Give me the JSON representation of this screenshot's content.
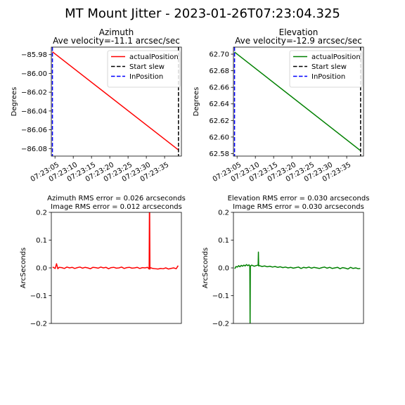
{
  "figure": {
    "title": "MT Mount Jitter - 2023-01-26T07:23:04.325"
  },
  "colors": {
    "azimuth": "#ff0000",
    "elevation": "#008000",
    "start_slew": "#000000",
    "in_position": "#0000ff"
  },
  "chart_data": [
    {
      "id": "azimuth-position",
      "type": "line",
      "title": "Azimuth",
      "subtitle": "Ave velocity=-11.1 arcsec/sec",
      "ylabel": "Degrees",
      "xlabel": "",
      "xlim": [
        "07:23:04.0",
        "07:23:39.6"
      ],
      "ylim": [
        -86.088,
        -85.972
      ],
      "xticks": [
        "07:23:05",
        "07:23:10",
        "07:23:15",
        "07:23:20",
        "07:23:25",
        "07:23:30",
        "07:23:35"
      ],
      "yticks": [
        -85.98,
        -86.0,
        -86.02,
        -86.04,
        -86.06,
        -86.08
      ],
      "ytick_labels": [
        "−85.98",
        "−86.00",
        "−86.02",
        "−86.04",
        "−86.06",
        "−86.08"
      ],
      "grid": false,
      "legend": "top-right",
      "series": [
        {
          "name": "actualPosition",
          "color": "#ff0000",
          "style": "solid",
          "x": [
            "07:23:04.3",
            "07:23:38.8"
          ],
          "y": [
            -85.977,
            -86.0815
          ]
        }
      ],
      "vlines": [
        {
          "name": "Start slew",
          "color": "#000000",
          "style": "dashed",
          "x": "07:23:38.8"
        },
        {
          "name": "InPosition",
          "color": "#0000ff",
          "style": "dashed",
          "x": "07:23:04.3"
        }
      ]
    },
    {
      "id": "elevation-position",
      "type": "line",
      "title": "Elevation",
      "subtitle": "Ave velocity=-12.9 arcsec/sec",
      "ylabel": "Degrees",
      "xlabel": "",
      "xlim": [
        "07:23:04.0",
        "07:23:39.6"
      ],
      "ylim": [
        62.577,
        62.7085
      ],
      "xticks": [
        "07:23:05",
        "07:23:10",
        "07:23:15",
        "07:23:20",
        "07:23:25",
        "07:23:30",
        "07:23:35"
      ],
      "yticks": [
        62.7,
        62.68,
        62.66,
        62.64,
        62.62,
        62.6,
        62.58
      ],
      "ytick_labels": [
        "62.70",
        "62.68",
        "62.66",
        "62.64",
        "62.62",
        "62.60",
        "62.58"
      ],
      "grid": false,
      "legend": "top-right",
      "series": [
        {
          "name": "actualPosition",
          "color": "#008000",
          "style": "solid",
          "x": [
            "07:23:04.3",
            "07:23:38.8"
          ],
          "y": [
            62.7025,
            62.5835
          ]
        }
      ],
      "vlines": [
        {
          "name": "Start slew",
          "color": "#000000",
          "style": "dashed",
          "x": "07:23:38.8"
        },
        {
          "name": "InPosition",
          "color": "#0000ff",
          "style": "dashed",
          "x": "07:23:04.3"
        }
      ]
    },
    {
      "id": "azimuth-error",
      "type": "line",
      "title": "Azimuth RMS error = 0.026 arcseconds",
      "subtitle": "Image RMS error = 0.012 arcseconds",
      "ylabel": "ArcSeconds",
      "xlabel": "",
      "xlim": [
        0,
        100
      ],
      "ylim": [
        -0.2,
        0.2
      ],
      "yticks": [
        0.2,
        0.1,
        0.0,
        -0.1,
        -0.2
      ],
      "ytick_labels": [
        "0.2",
        "0.1",
        "0.0",
        "−0.1",
        "−0.2"
      ],
      "grid": false,
      "series": [
        {
          "color": "#ff0000",
          "x": [
            1,
            3,
            4,
            5,
            6,
            8,
            10,
            12,
            14,
            16,
            18,
            20,
            22,
            24,
            26,
            28,
            30,
            32,
            34,
            36,
            38,
            40,
            42,
            44,
            46,
            48,
            50,
            52,
            54,
            56,
            58,
            60,
            62,
            64,
            66,
            68,
            70,
            72,
            74,
            75.2,
            75.4,
            75.6,
            75.8,
            76,
            78,
            80,
            82,
            84,
            86,
            88,
            90,
            92,
            94,
            96,
            97.5
          ],
          "y": [
            0.003,
            -0.002,
            0.015,
            -0.003,
            0.002,
            0.001,
            -0.002,
            0.003,
            0.0,
            0.002,
            -0.002,
            0.001,
            0.003,
            -0.001,
            0.002,
            0.0,
            -0.003,
            0.002,
            0.001,
            -0.001,
            0.003,
            0.0,
            0.002,
            -0.003,
            0.001,
            0.002,
            -0.001,
            0.0,
            0.003,
            -0.002,
            0.001,
            0.002,
            -0.001,
            0.0,
            0.002,
            -0.002,
            0.001,
            0.0,
            0.002,
            -0.004,
            0.2,
            0.2,
            -0.004,
            0.001,
            -0.002,
            -0.003,
            -0.004,
            -0.002,
            -0.003,
            0.0,
            -0.004,
            -0.002,
            0.0,
            -0.003,
            0.008
          ]
        }
      ]
    },
    {
      "id": "elevation-error",
      "type": "line",
      "title": "Elevation RMS error = 0.030 arcseconds",
      "subtitle": "Image RMS error = 0.030 arcseconds",
      "ylabel": "ArcSeconds",
      "xlabel": "",
      "xlim": [
        0,
        100
      ],
      "ylim": [
        -0.2,
        0.2
      ],
      "yticks": [
        0.2,
        0.1,
        0.0,
        -0.1,
        -0.2
      ],
      "ytick_labels": [
        "0.2",
        "0.1",
        "0.0",
        "−0.1",
        "−0.2"
      ],
      "grid": false,
      "series": [
        {
          "color": "#008000",
          "x": [
            1,
            2,
            3,
            4,
            5,
            6,
            7,
            8,
            9,
            10,
            11,
            12,
            12.6,
            12.8,
            13,
            14,
            16,
            18,
            19,
            19.2,
            19.4,
            20,
            22,
            24,
            26,
            28,
            30,
            32,
            34,
            36,
            38,
            40,
            42,
            44,
            46,
            48,
            50,
            52,
            54,
            56,
            58,
            60,
            62,
            64,
            66,
            68,
            70,
            72,
            74,
            76,
            78,
            80,
            82,
            84,
            86,
            88,
            90,
            92,
            94,
            96,
            97.5
          ],
          "y": [
            -0.003,
            0.005,
            0.003,
            0.008,
            0.004,
            0.009,
            0.006,
            0.01,
            0.007,
            0.012,
            0.008,
            0.011,
            0.006,
            -0.2,
            0.006,
            0.01,
            0.006,
            0.009,
            0.01,
            0.057,
            0.007,
            0.008,
            0.005,
            0.007,
            0.004,
            0.006,
            0.003,
            0.005,
            0.002,
            0.004,
            0.001,
            0.003,
            0.0,
            0.002,
            -0.001,
            0.001,
            0.003,
            -0.002,
            0.002,
            0.0,
            0.003,
            -0.001,
            0.002,
            0.0,
            -0.002,
            0.001,
            0.003,
            -0.001,
            0.002,
            -0.002,
            0.0,
            0.002,
            -0.003,
            0.001,
            -0.001,
            -0.004,
            0.002,
            -0.002,
            0.0,
            -0.003,
            -0.002
          ]
        }
      ]
    }
  ]
}
